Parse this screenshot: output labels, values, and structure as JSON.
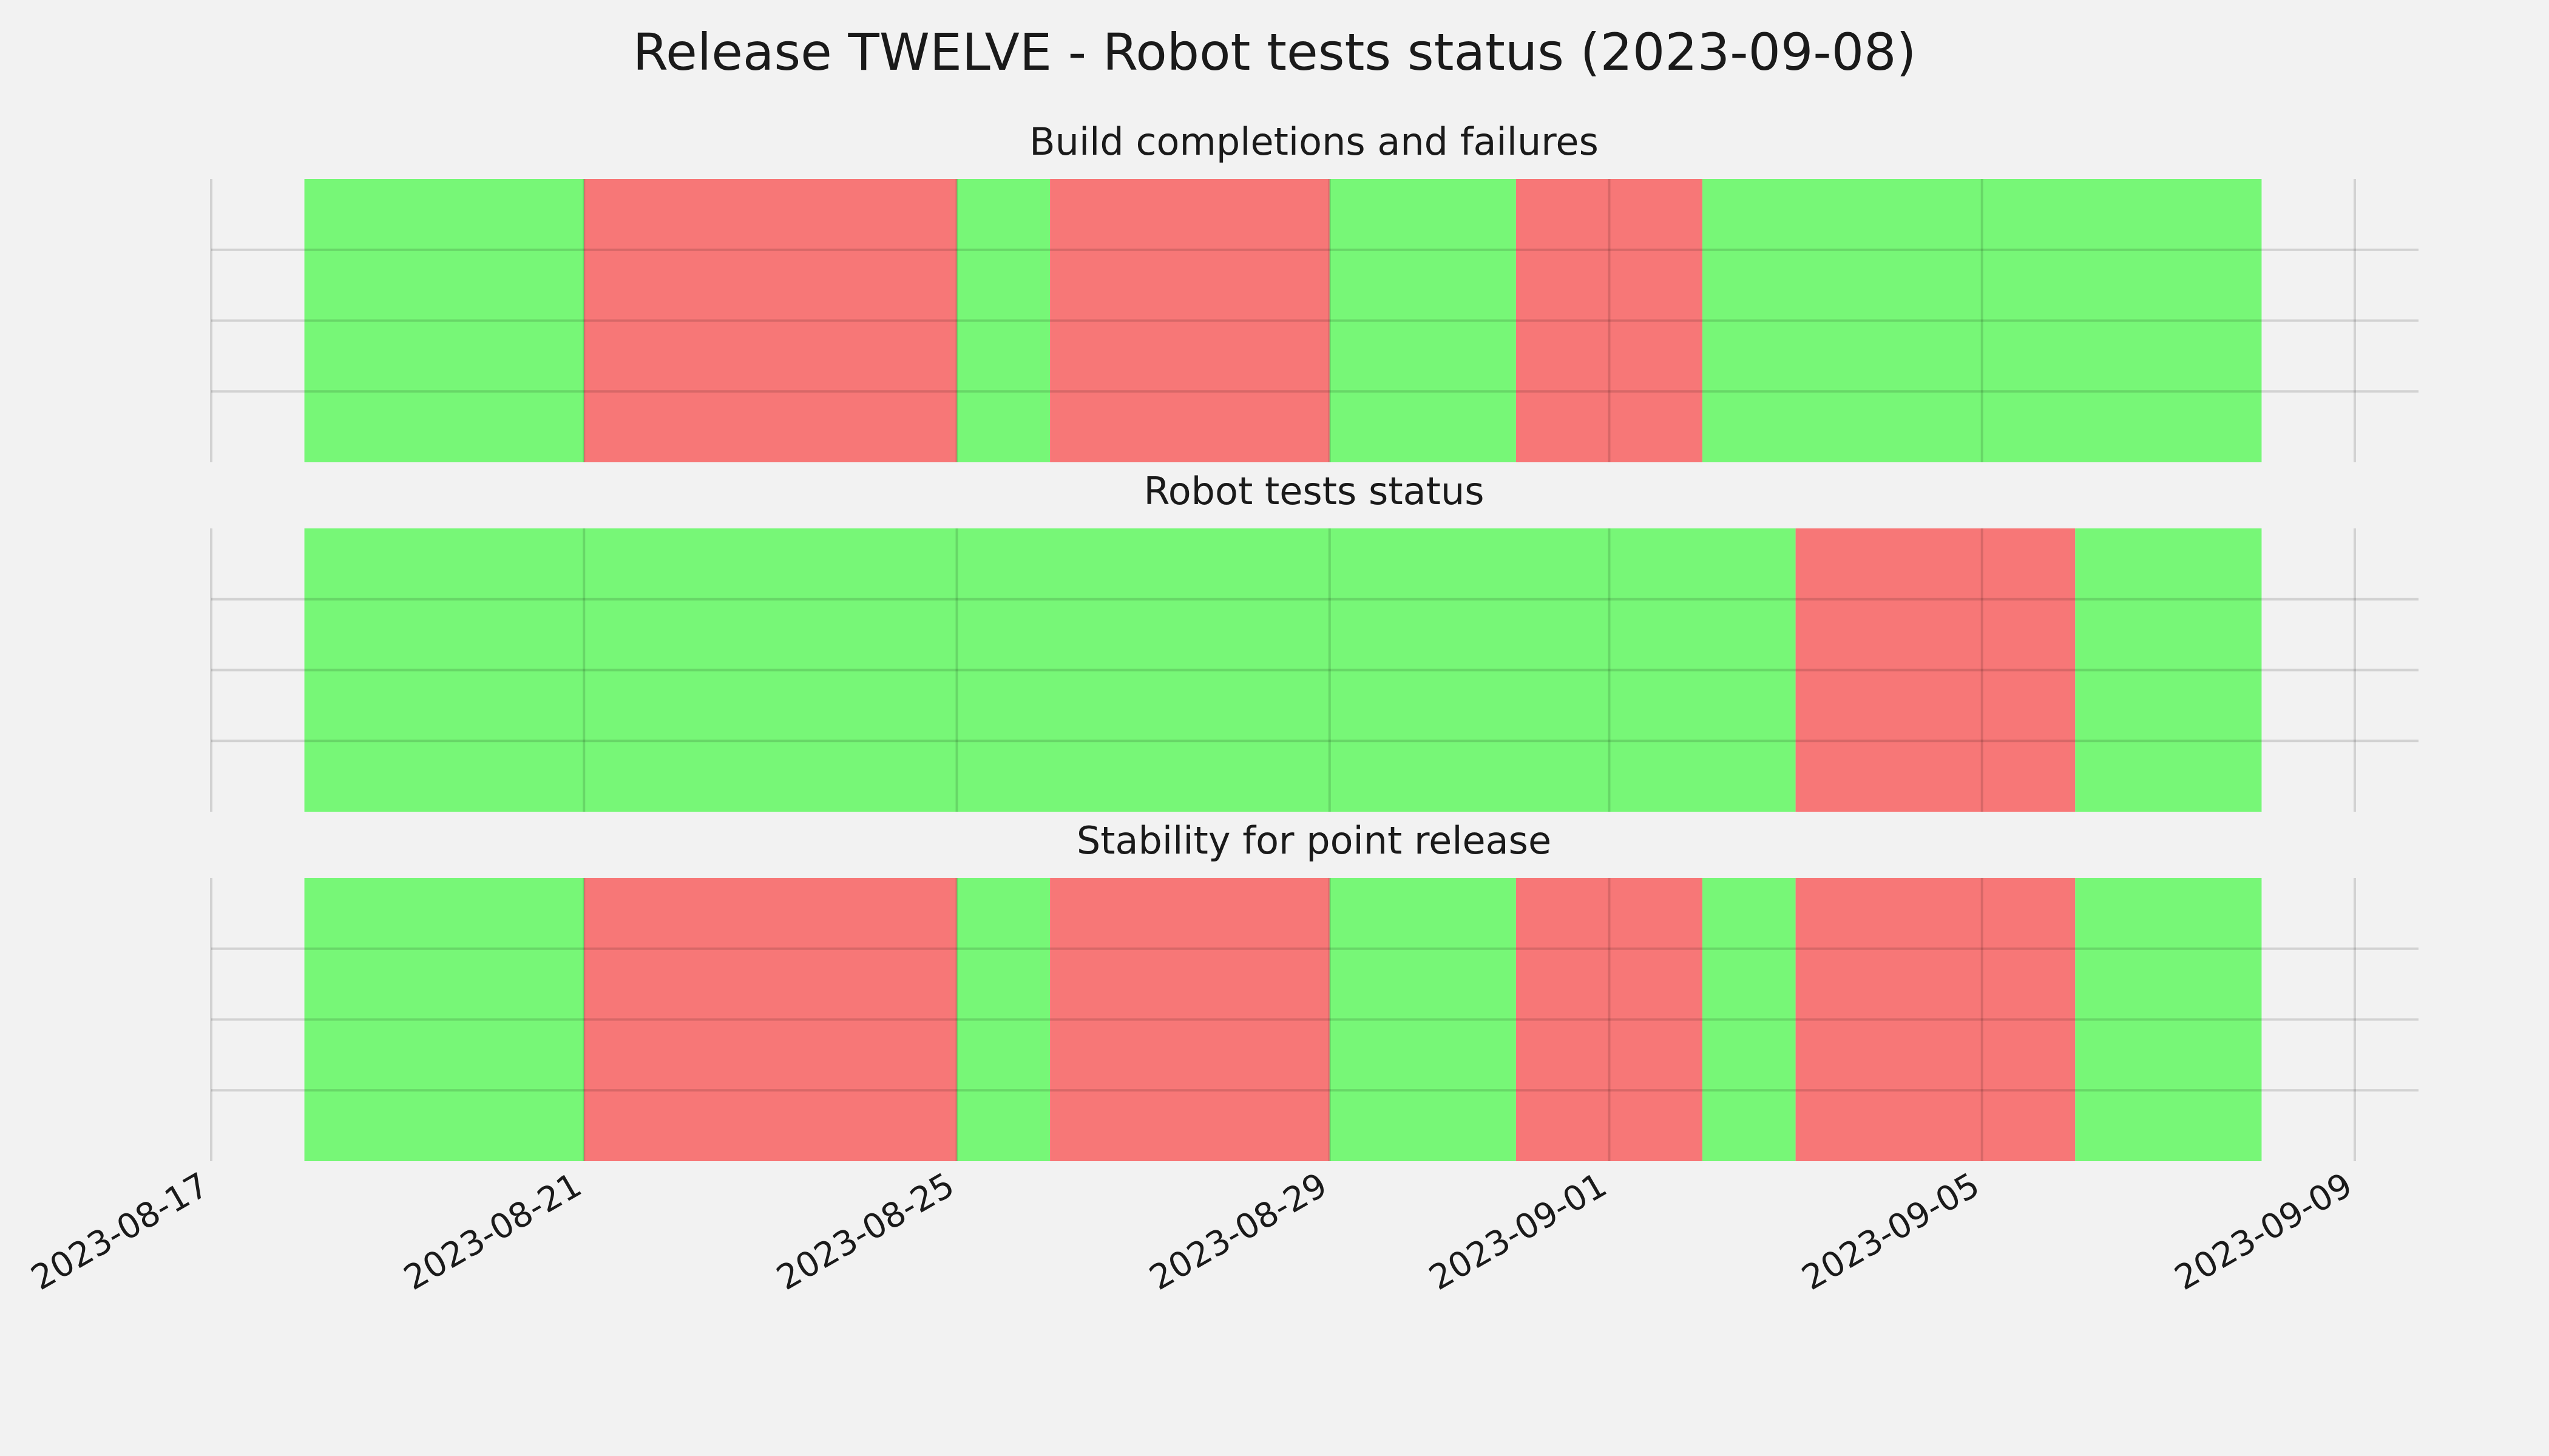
{
  "chart_data": {
    "type": "timeline",
    "title": "Release TWELVE - Robot tests status (2023-09-08)",
    "xlabel": "",
    "ylabel": "",
    "xlim": [
      "2023-08-17",
      "2023-09-09"
    ],
    "x_ticks": [
      "2023-08-17",
      "2023-08-21",
      "2023-08-25",
      "2023-08-29",
      "2023-09-01",
      "2023-09-05",
      "2023-09-09"
    ],
    "grid": true,
    "colors": {
      "pass": "#77f777",
      "fail": "#f77777"
    },
    "panels": [
      {
        "title": "Build completions and failures",
        "segments": [
          {
            "start": "2023-08-18",
            "end": "2023-08-21",
            "status": "pass"
          },
          {
            "start": "2023-08-21",
            "end": "2023-08-25",
            "status": "fail"
          },
          {
            "start": "2023-08-25",
            "end": "2023-08-26",
            "status": "pass"
          },
          {
            "start": "2023-08-26",
            "end": "2023-08-29",
            "status": "fail"
          },
          {
            "start": "2023-08-29",
            "end": "2023-08-31",
            "status": "pass"
          },
          {
            "start": "2023-08-31",
            "end": "2023-09-02",
            "status": "fail"
          },
          {
            "start": "2023-09-02",
            "end": "2023-09-08",
            "status": "pass"
          }
        ]
      },
      {
        "title": "Robot tests status",
        "segments": [
          {
            "start": "2023-08-18",
            "end": "2023-09-03",
            "status": "pass"
          },
          {
            "start": "2023-09-03",
            "end": "2023-09-06",
            "status": "fail"
          },
          {
            "start": "2023-09-06",
            "end": "2023-09-08",
            "status": "pass"
          }
        ]
      },
      {
        "title": "Stability for point release",
        "segments": [
          {
            "start": "2023-08-18",
            "end": "2023-08-21",
            "status": "pass"
          },
          {
            "start": "2023-08-21",
            "end": "2023-08-25",
            "status": "fail"
          },
          {
            "start": "2023-08-25",
            "end": "2023-08-26",
            "status": "pass"
          },
          {
            "start": "2023-08-26",
            "end": "2023-08-29",
            "status": "fail"
          },
          {
            "start": "2023-08-29",
            "end": "2023-08-31",
            "status": "pass"
          },
          {
            "start": "2023-08-31",
            "end": "2023-09-02",
            "status": "fail"
          },
          {
            "start": "2023-09-02",
            "end": "2023-09-03",
            "status": "pass"
          },
          {
            "start": "2023-09-03",
            "end": "2023-09-06",
            "status": "fail"
          },
          {
            "start": "2023-09-06",
            "end": "2023-09-08",
            "status": "pass"
          }
        ]
      }
    ]
  }
}
